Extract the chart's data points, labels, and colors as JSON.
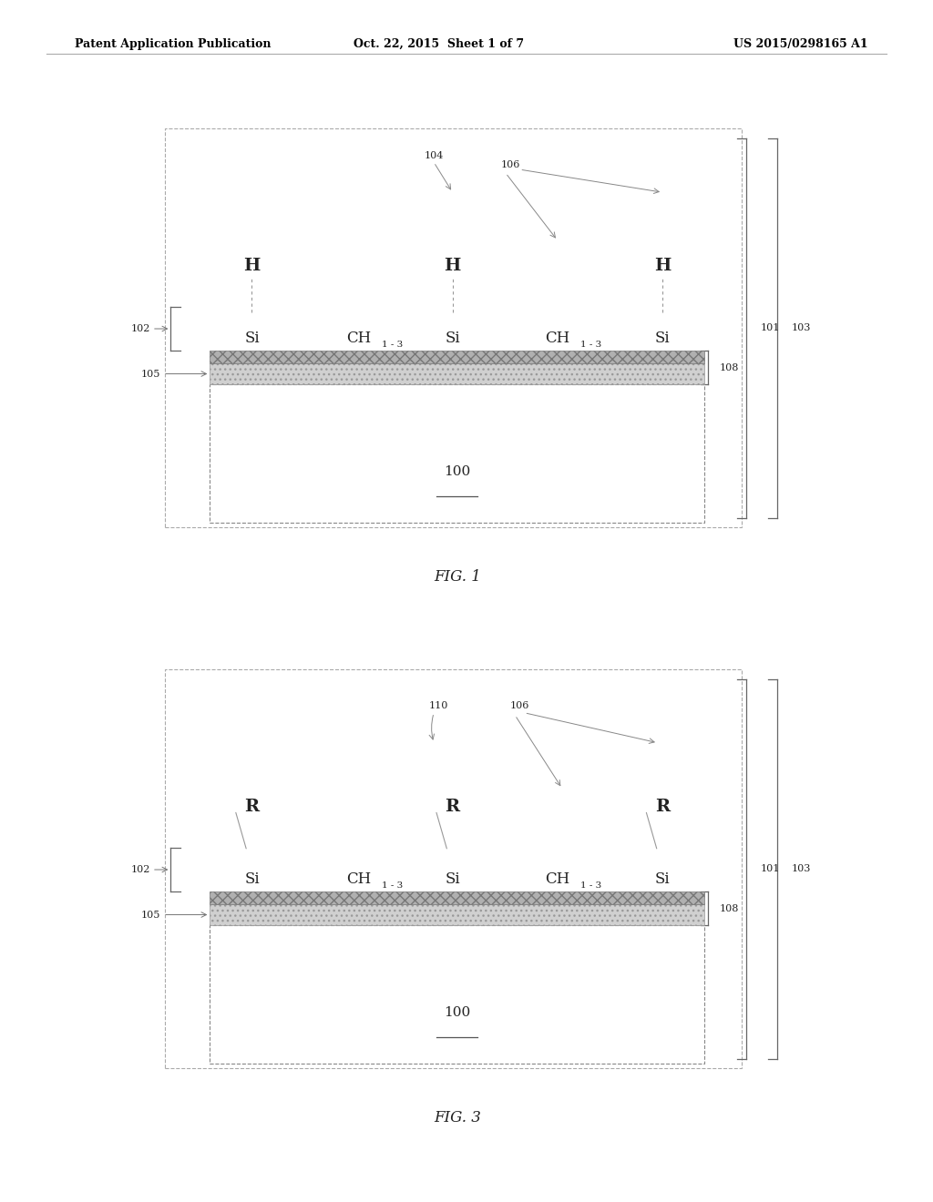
{
  "bg_color": "#ffffff",
  "header_text": "Patent Application Publication",
  "header_date": "Oct. 22, 2015  Sheet 1 of 7",
  "header_patent": "US 2015/0298165 A1",
  "fig1_label": "FIG. 1",
  "fig3_label": "FIG. 3",
  "text_color": "#222222",
  "line_color": "#555555",
  "hatch_color": "#888888"
}
